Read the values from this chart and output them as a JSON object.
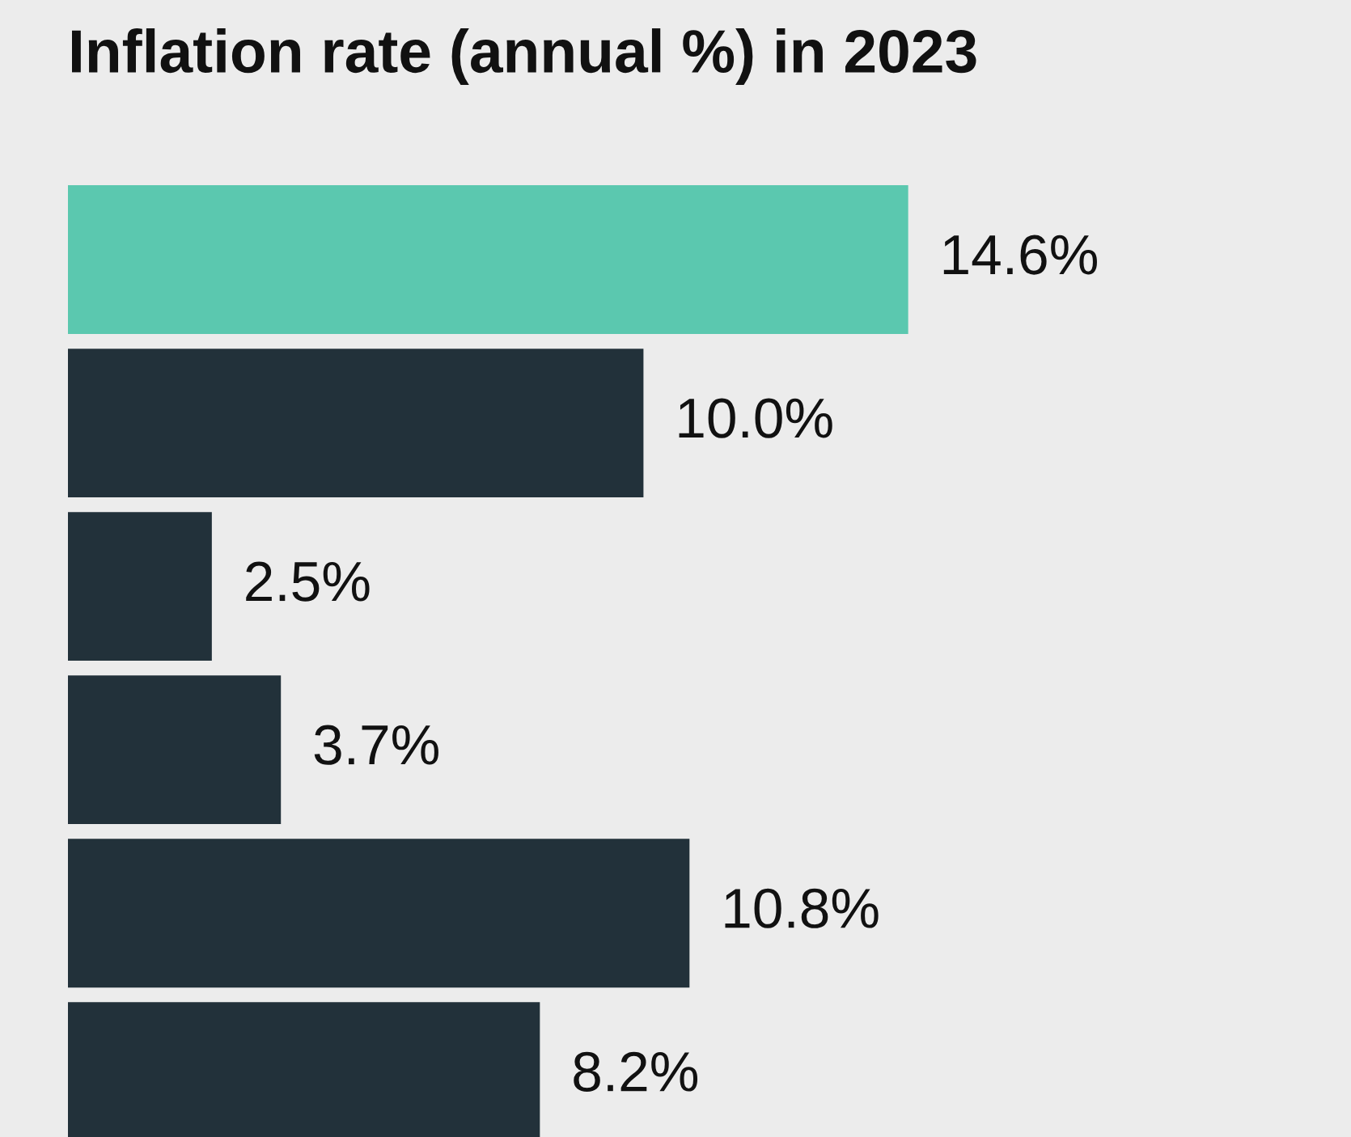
{
  "chart_data": {
    "type": "bar",
    "orientation": "horizontal",
    "title": "Inflation rate (annual %) in 2023",
    "categories": [
      null,
      null,
      null,
      null,
      null,
      null
    ],
    "values": [
      14.6,
      10.0,
      2.5,
      3.7,
      10.8,
      8.2
    ],
    "value_labels": [
      "14.6%",
      "10.0%",
      "2.5%",
      "3.7%",
      "10.8%",
      "8.2%"
    ],
    "colors": [
      "#5bc8af",
      "#22313a",
      "#22313a",
      "#22313a",
      "#22313a",
      "#22313a"
    ],
    "grid": false,
    "legend": false
  }
}
